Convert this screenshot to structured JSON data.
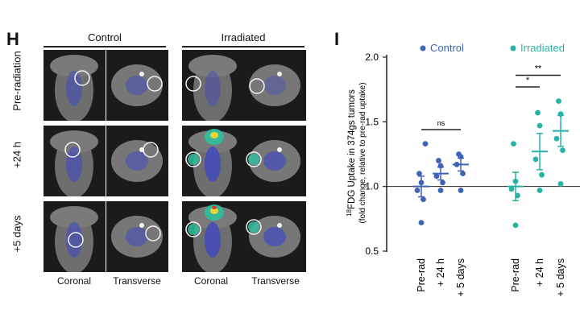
{
  "panel_h": {
    "letter": "H",
    "groups": [
      "Control",
      "Irradiated"
    ],
    "rows": [
      "Pre-radiation",
      "+24 h",
      "+5 days"
    ],
    "columns": [
      "Coronal",
      "Transverse",
      "Coronal",
      "Transverse"
    ]
  },
  "panel_i": {
    "letter": "I"
  },
  "colors": {
    "control": "#3f63b5",
    "irradiated": "#26b3a3"
  },
  "chart_data": {
    "type": "scatter",
    "ylabel_sup": "18",
    "ylabel_main": "FDG Uptake in 374gs tumors",
    "ylabel_sub": "(fold change, relative to pre-rad uptake)",
    "ylim": [
      0.5,
      2.0
    ],
    "yticks": [
      "0.5",
      "1.0",
      "1.5",
      "2.0"
    ],
    "reference_line": 1.0,
    "categories": [
      "Pre-rad",
      "+ 24 h",
      "+ 5 days"
    ],
    "legend": [
      "Control",
      "Irradiated"
    ],
    "series": [
      {
        "name": "Control",
        "points": [
          [
            0.72,
            0.9,
            0.97,
            1.03,
            1.1,
            1.33
          ],
          [
            0.97,
            1.03,
            1.08,
            1.16,
            1.2
          ],
          [
            0.97,
            1.1,
            1.17,
            1.23,
            1.25
          ]
        ],
        "mean": [
          1.0,
          1.1,
          1.17
        ],
        "sem": [
          0.08,
          0.05,
          0.05
        ]
      },
      {
        "name": "Irradiated",
        "points": [
          [
            0.7,
            0.93,
            0.98,
            1.04,
            1.33
          ],
          [
            0.97,
            1.09,
            1.21,
            1.47,
            1.57
          ],
          [
            1.02,
            1.28,
            1.37,
            1.56,
            1.66
          ]
        ],
        "mean": [
          1.0,
          1.27,
          1.43
        ],
        "sem": [
          0.11,
          0.14,
          0.12
        ]
      }
    ],
    "significance": [
      {
        "label": "ns"
      },
      {
        "label": "*"
      },
      {
        "label": "**"
      }
    ]
  }
}
